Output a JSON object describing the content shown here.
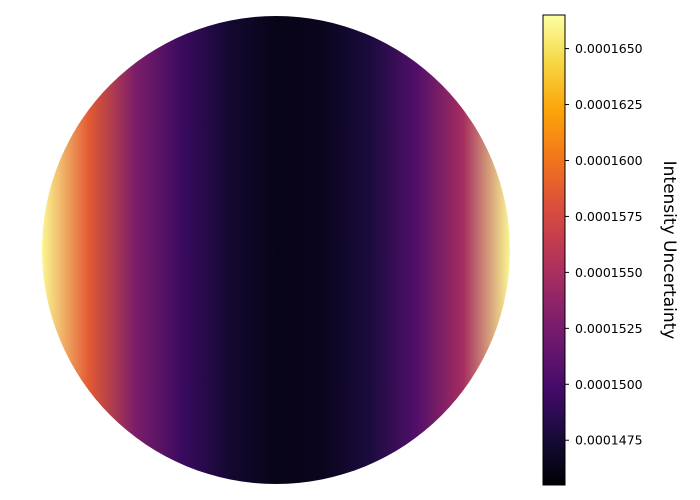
{
  "chart_data": {
    "type": "heatmap",
    "shape": "disk",
    "colormap": "inferno",
    "pattern": "horizontal-gradient",
    "x": [
      -1.0,
      -0.8,
      -0.6,
      -0.4,
      -0.2,
      0.0,
      0.2,
      0.4,
      0.6,
      0.8,
      1.0
    ],
    "values": [
      0.0001661,
      0.0001586,
      0.0001527,
      0.0001493,
      0.0001473,
      0.0001463,
      0.0001465,
      0.0001478,
      0.0001505,
      0.0001548,
      0.0001661
    ],
    "vmin": 0.0001455,
    "vmax": 0.0001665,
    "colorbar": {
      "label": "Intensity Uncertainty",
      "ticks": [
        0.0001475,
        0.00015,
        0.0001525,
        0.000155,
        0.0001575,
        0.00016,
        0.0001625,
        0.000165
      ],
      "tick_labels": [
        "0.0001475",
        "0.0001500",
        "0.0001525",
        "0.0001550",
        "0.0001575",
        "0.0001600",
        "0.0001625",
        "0.0001650"
      ]
    }
  }
}
